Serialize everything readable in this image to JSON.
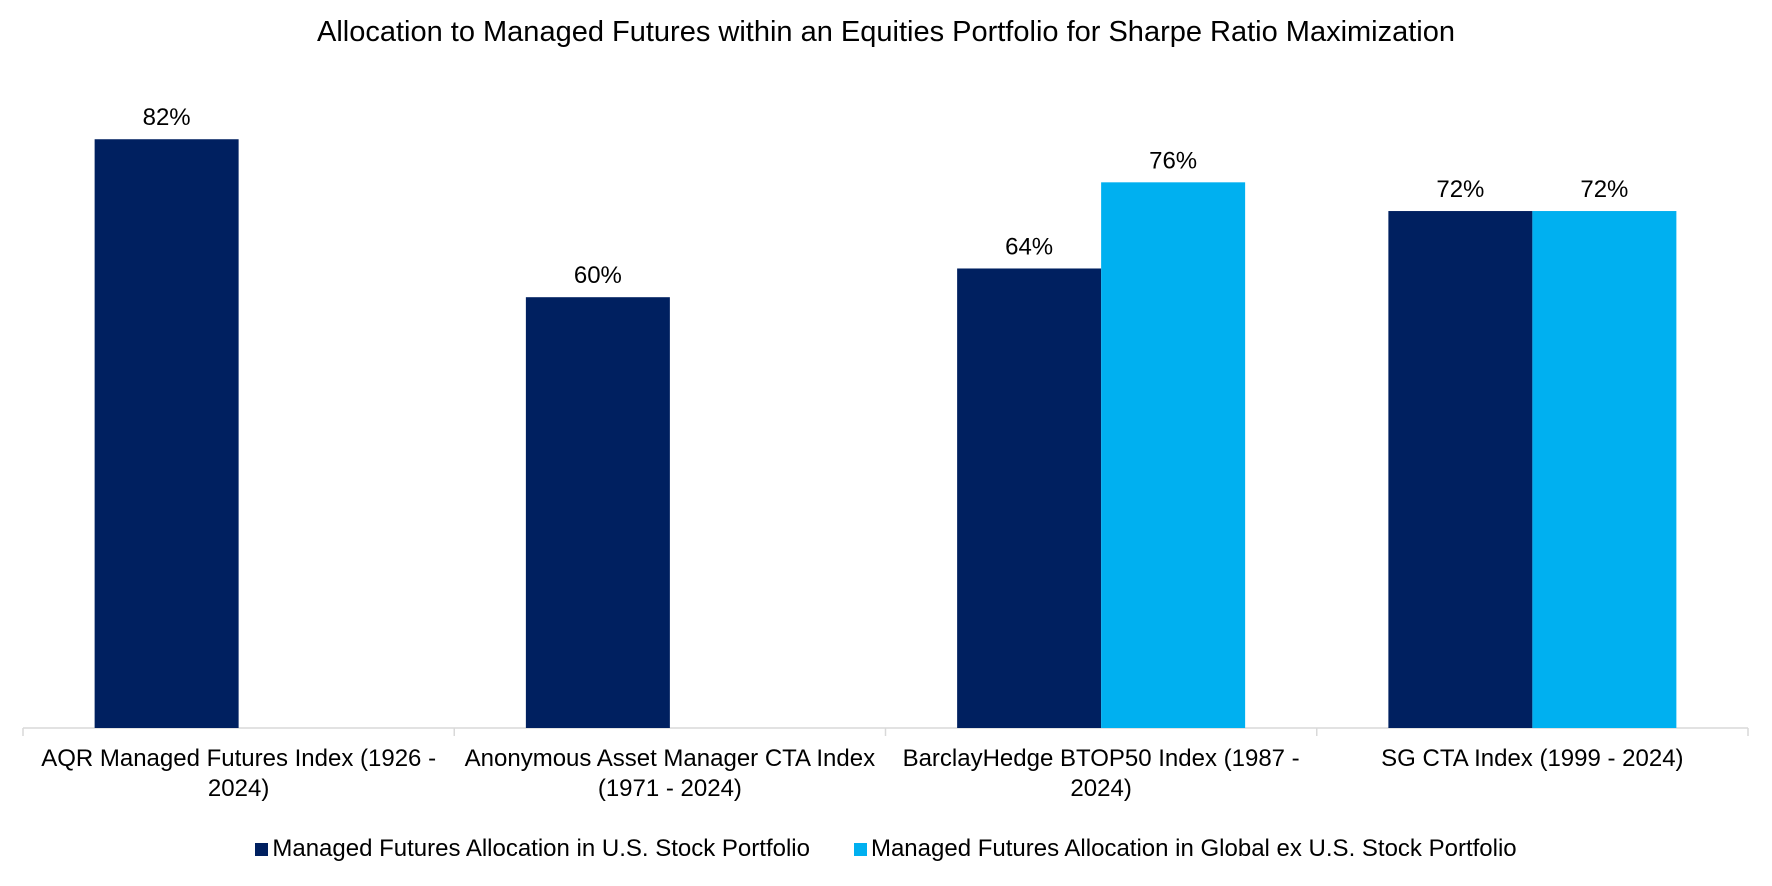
{
  "chart_data": {
    "type": "bar",
    "title": "Allocation to Managed Futures within an Equities Portfolio for Sharpe Ratio Maximization",
    "categories": [
      "AQR Managed Futures Index (1926 - 2024)",
      "Anonymous Asset Manager CTA Index (1971 - 2024)",
      "BarclayHedge BTOP50 Index (1987 - 2024)",
      "SG CTA Index (1999 - 2024)"
    ],
    "series": [
      {
        "name": "Managed Futures Allocation in U.S. Stock Portfolio",
        "color": "#002060",
        "values": [
          82,
          60,
          64,
          72
        ],
        "value_labels": [
          "82%",
          "60%",
          "64%",
          "72%"
        ]
      },
      {
        "name": "Managed Futures Allocation in Global ex U.S. Stock Portfolio",
        "color": "#00b0f0",
        "values": [
          null,
          null,
          76,
          72
        ],
        "value_labels": [
          null,
          null,
          "76%",
          "72%"
        ]
      }
    ]
  }
}
